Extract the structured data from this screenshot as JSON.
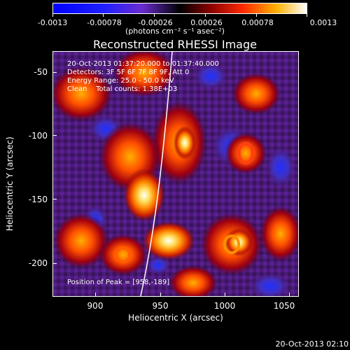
{
  "colorbar": {
    "ticks": [
      "-0.0013",
      "-0.00078",
      "-0.00026",
      "0.00026",
      "0.00078",
      "0.0013"
    ],
    "units": "(photons cm⁻² s⁻¹ asec⁻²)"
  },
  "title": "Reconstructed RHESSI Image",
  "annotations": {
    "time_range": "20-Oct-2013 01:37:20.000 to 01:37:40.000",
    "detectors": "Detectors: 3F 5F 6F 7F 8F 9F, Att 0",
    "energy": "Energy Range: 25.0 - 50.0 keV",
    "clean": "Clean    Total counts: 1.38E+03",
    "peak": "Position of Peak = [958,-189]"
  },
  "axes": {
    "xlabel": "Heliocentric X (arcsec)",
    "ylabel": "Heliocentric Y (arcsec)",
    "xticks": [
      "900",
      "950",
      "1000",
      "1050"
    ],
    "yticks": [
      "-50",
      "-100",
      "-150",
      "-200"
    ]
  },
  "timestamp": "20-Oct-2013 02:10"
}
